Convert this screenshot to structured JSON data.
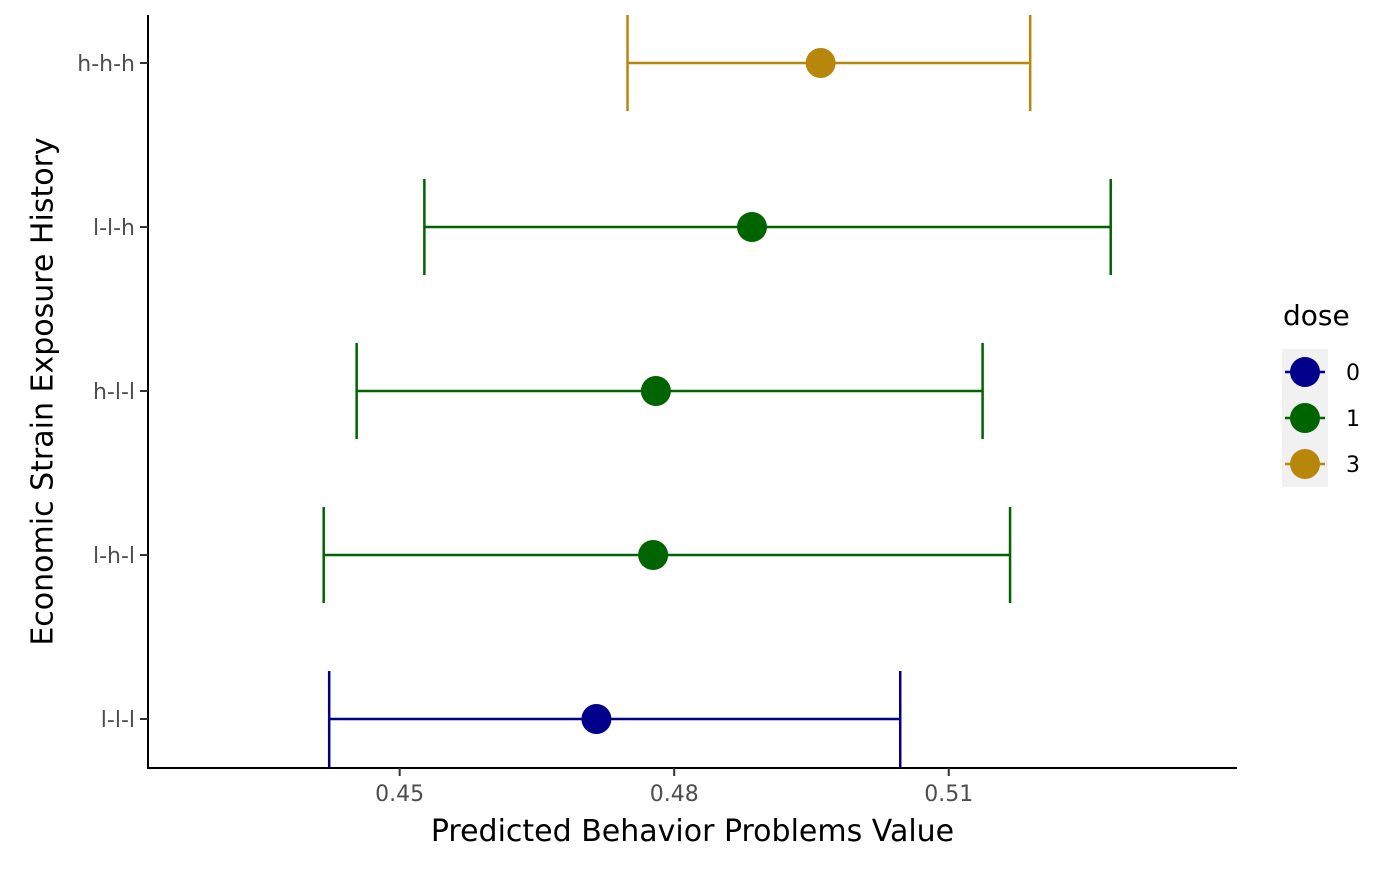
{
  "chart_data": {
    "type": "scatter",
    "xlabel": "Predicted Behavior Problems Value",
    "ylabel": "Economic Strain Exposure History",
    "xlim": [
      0.4225,
      0.5415
    ],
    "x_ticks": [
      {
        "value": 0.45,
        "label": "0.45"
      },
      {
        "value": 0.48,
        "label": "0.48"
      },
      {
        "value": 0.51,
        "label": "0.51"
      }
    ],
    "categories": [
      "l-l-l",
      "l-h-l",
      "h-l-l",
      "l-l-h",
      "h-h-h"
    ],
    "points": [
      {
        "category": "l-l-l",
        "dose": "0",
        "estimate": 0.4715,
        "ci_low": 0.4423,
        "ci_high": 0.5047
      },
      {
        "category": "l-h-l",
        "dose": "1",
        "estimate": 0.4777,
        "ci_low": 0.4417,
        "ci_high": 0.5167
      },
      {
        "category": "h-l-l",
        "dose": "1",
        "estimate": 0.478,
        "ci_low": 0.4453,
        "ci_high": 0.5137
      },
      {
        "category": "l-l-h",
        "dose": "1",
        "estimate": 0.4885,
        "ci_low": 0.4527,
        "ci_high": 0.5277
      },
      {
        "category": "h-h-h",
        "dose": "3",
        "estimate": 0.496,
        "ci_low": 0.4749,
        "ci_high": 0.5189
      }
    ],
    "legend": {
      "title": "dose",
      "position": "right",
      "items": [
        {
          "label": "0",
          "color": "#00008B"
        },
        {
          "label": "1",
          "color": "#006400"
        },
        {
          "label": "3",
          "color": "#B8860B"
        }
      ]
    },
    "grid": false
  }
}
